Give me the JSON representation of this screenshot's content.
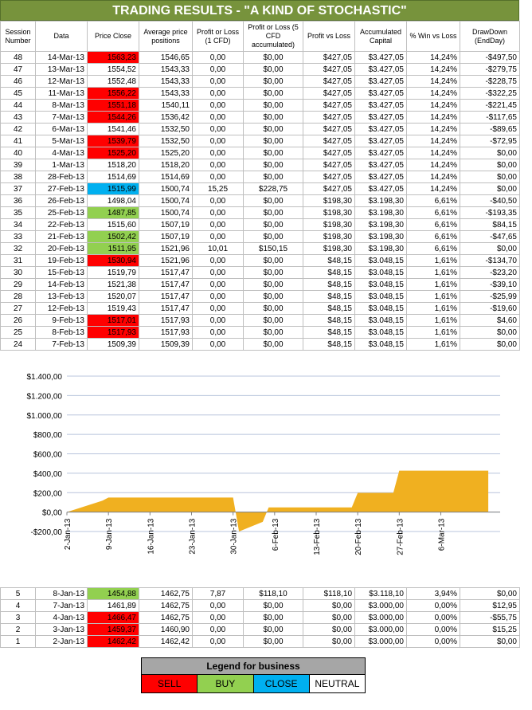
{
  "title": "TRADING RESULTS - \"A KIND OF STOCHASTIC\"",
  "headers": [
    "Session Number",
    "Data",
    "Price Close",
    "Average price positions",
    "Profit or Loss (1 CFD)",
    "Profit or Loss (5 CFD accumulated)",
    "Profit vs Loss",
    "Accumulated Capital",
    "% Win vs Loss",
    "DrawDown (EndDay)"
  ],
  "rows_top": [
    {
      "n": "48",
      "d": "14-Mar-13",
      "p": "1563,23",
      "s": "sell",
      "a": "1546,65",
      "pl": "0,00",
      "pl5": "$0,00",
      "pvl": "$427,05",
      "cap": "$3.427,05",
      "win": "14,24%",
      "dd": "-$497,50"
    },
    {
      "n": "47",
      "d": "13-Mar-13",
      "p": "1554,52",
      "s": "",
      "a": "1543,33",
      "pl": "0,00",
      "pl5": "$0,00",
      "pvl": "$427,05",
      "cap": "$3.427,05",
      "win": "14,24%",
      "dd": "-$279,75"
    },
    {
      "n": "46",
      "d": "12-Mar-13",
      "p": "1552,48",
      "s": "",
      "a": "1543,33",
      "pl": "0,00",
      "pl5": "$0,00",
      "pvl": "$427,05",
      "cap": "$3.427,05",
      "win": "14,24%",
      "dd": "-$228,75"
    },
    {
      "n": "45",
      "d": "11-Mar-13",
      "p": "1556,22",
      "s": "sell",
      "a": "1543,33",
      "pl": "0,00",
      "pl5": "$0,00",
      "pvl": "$427,05",
      "cap": "$3.427,05",
      "win": "14,24%",
      "dd": "-$322,25"
    },
    {
      "n": "44",
      "d": "8-Mar-13",
      "p": "1551,18",
      "s": "sell",
      "a": "1540,11",
      "pl": "0,00",
      "pl5": "$0,00",
      "pvl": "$427,05",
      "cap": "$3.427,05",
      "win": "14,24%",
      "dd": "-$221,45"
    },
    {
      "n": "43",
      "d": "7-Mar-13",
      "p": "1544,26",
      "s": "sell",
      "a": "1536,42",
      "pl": "0,00",
      "pl5": "$0,00",
      "pvl": "$427,05",
      "cap": "$3.427,05",
      "win": "14,24%",
      "dd": "-$117,65"
    },
    {
      "n": "42",
      "d": "6-Mar-13",
      "p": "1541,46",
      "s": "",
      "a": "1532,50",
      "pl": "0,00",
      "pl5": "$0,00",
      "pvl": "$427,05",
      "cap": "$3.427,05",
      "win": "14,24%",
      "dd": "-$89,65"
    },
    {
      "n": "41",
      "d": "5-Mar-13",
      "p": "1539,79",
      "s": "sell",
      "a": "1532,50",
      "pl": "0,00",
      "pl5": "$0,00",
      "pvl": "$427,05",
      "cap": "$3.427,05",
      "win": "14,24%",
      "dd": "-$72,95"
    },
    {
      "n": "40",
      "d": "4-Mar-13",
      "p": "1525,20",
      "s": "sell",
      "a": "1525,20",
      "pl": "0,00",
      "pl5": "$0,00",
      "pvl": "$427,05",
      "cap": "$3.427,05",
      "win": "14,24%",
      "dd": "$0,00"
    },
    {
      "n": "39",
      "d": "1-Mar-13",
      "p": "1518,20",
      "s": "",
      "a": "1518,20",
      "pl": "0,00",
      "pl5": "$0,00",
      "pvl": "$427,05",
      "cap": "$3.427,05",
      "win": "14,24%",
      "dd": "$0,00"
    },
    {
      "n": "38",
      "d": "28-Feb-13",
      "p": "1514,69",
      "s": "",
      "a": "1514,69",
      "pl": "0,00",
      "pl5": "$0,00",
      "pvl": "$427,05",
      "cap": "$3.427,05",
      "win": "14,24%",
      "dd": "$0,00"
    },
    {
      "n": "37",
      "d": "27-Feb-13",
      "p": "1515,99",
      "s": "close",
      "a": "1500,74",
      "pl": "15,25",
      "pl5": "$228,75",
      "pvl": "$427,05",
      "cap": "$3.427,05",
      "win": "14,24%",
      "dd": "$0,00"
    },
    {
      "n": "36",
      "d": "26-Feb-13",
      "p": "1498,04",
      "s": "",
      "a": "1500,74",
      "pl": "0,00",
      "pl5": "$0,00",
      "pvl": "$198,30",
      "cap": "$3.198,30",
      "win": "6,61%",
      "dd": "-$40,50"
    },
    {
      "n": "35",
      "d": "25-Feb-13",
      "p": "1487,85",
      "s": "buy",
      "a": "1500,74",
      "pl": "0,00",
      "pl5": "$0,00",
      "pvl": "$198,30",
      "cap": "$3.198,30",
      "win": "6,61%",
      "dd": "-$193,35"
    },
    {
      "n": "34",
      "d": "22-Feb-13",
      "p": "1515,60",
      "s": "",
      "a": "1507,19",
      "pl": "0,00",
      "pl5": "$0,00",
      "pvl": "$198,30",
      "cap": "$3.198,30",
      "win": "6,61%",
      "dd": "$84,15"
    },
    {
      "n": "33",
      "d": "21-Feb-13",
      "p": "1502,42",
      "s": "buy",
      "a": "1507,19",
      "pl": "0,00",
      "pl5": "$0,00",
      "pvl": "$198,30",
      "cap": "$3.198,30",
      "win": "6,61%",
      "dd": "-$47,65"
    },
    {
      "n": "32",
      "d": "20-Feb-13",
      "p": "1511,95",
      "s": "buy",
      "a": "1521,96",
      "pl": "10,01",
      "pl5": "$150,15",
      "pvl": "$198,30",
      "cap": "$3.198,30",
      "win": "6,61%",
      "dd": "$0,00"
    },
    {
      "n": "31",
      "d": "19-Feb-13",
      "p": "1530,94",
      "s": "sell",
      "a": "1521,96",
      "pl": "0,00",
      "pl5": "$0,00",
      "pvl": "$48,15",
      "cap": "$3.048,15",
      "win": "1,61%",
      "dd": "-$134,70"
    },
    {
      "n": "30",
      "d": "15-Feb-13",
      "p": "1519,79",
      "s": "",
      "a": "1517,47",
      "pl": "0,00",
      "pl5": "$0,00",
      "pvl": "$48,15",
      "cap": "$3.048,15",
      "win": "1,61%",
      "dd": "-$23,20"
    },
    {
      "n": "29",
      "d": "14-Feb-13",
      "p": "1521,38",
      "s": "",
      "a": "1517,47",
      "pl": "0,00",
      "pl5": "$0,00",
      "pvl": "$48,15",
      "cap": "$3.048,15",
      "win": "1,61%",
      "dd": "-$39,10"
    },
    {
      "n": "28",
      "d": "13-Feb-13",
      "p": "1520,07",
      "s": "",
      "a": "1517,47",
      "pl": "0,00",
      "pl5": "$0,00",
      "pvl": "$48,15",
      "cap": "$3.048,15",
      "win": "1,61%",
      "dd": "-$25,99"
    },
    {
      "n": "27",
      "d": "12-Feb-13",
      "p": "1519,43",
      "s": "",
      "a": "1517,47",
      "pl": "0,00",
      "pl5": "$0,00",
      "pvl": "$48,15",
      "cap": "$3.048,15",
      "win": "1,61%",
      "dd": "-$19,60"
    },
    {
      "n": "26",
      "d": "9-Feb-13",
      "p": "1517,01",
      "s": "sell",
      "a": "1517,93",
      "pl": "0,00",
      "pl5": "$0,00",
      "pvl": "$48,15",
      "cap": "$3.048,15",
      "win": "1,61%",
      "dd": "$4,60"
    },
    {
      "n": "25",
      "d": "8-Feb-13",
      "p": "1517,93",
      "s": "sell",
      "a": "1517,93",
      "pl": "0,00",
      "pl5": "$0,00",
      "pvl": "$48,15",
      "cap": "$3.048,15",
      "win": "1,61%",
      "dd": "$0,00"
    },
    {
      "n": "24",
      "d": "7-Feb-13",
      "p": "1509,39",
      "s": "",
      "a": "1509,39",
      "pl": "0,00",
      "pl5": "$0,00",
      "pvl": "$48,15",
      "cap": "$3.048,15",
      "win": "1,61%",
      "dd": "$0,00"
    }
  ],
  "rows_bottom": [
    {
      "n": "5",
      "d": "8-Jan-13",
      "p": "1454,88",
      "s": "buy",
      "a": "1462,75",
      "pl": "7,87",
      "pl5": "$118,10",
      "pvl": "$118,10",
      "cap": "$3.118,10",
      "win": "3,94%",
      "dd": "$0,00"
    },
    {
      "n": "4",
      "d": "7-Jan-13",
      "p": "1461,89",
      "s": "",
      "a": "1462,75",
      "pl": "0,00",
      "pl5": "$0,00",
      "pvl": "$0,00",
      "cap": "$3.000,00",
      "win": "0,00%",
      "dd": "$12,95"
    },
    {
      "n": "3",
      "d": "4-Jan-13",
      "p": "1466,47",
      "s": "sell",
      "a": "1462,75",
      "pl": "0,00",
      "pl5": "$0,00",
      "pvl": "$0,00",
      "cap": "$3.000,00",
      "win": "0,00%",
      "dd": "-$55,75"
    },
    {
      "n": "2",
      "d": "3-Jan-13",
      "p": "1459,37",
      "s": "sell",
      "a": "1460,90",
      "pl": "0,00",
      "pl5": "$0,00",
      "pvl": "$0,00",
      "cap": "$3.000,00",
      "win": "0,00%",
      "dd": "$15,25"
    },
    {
      "n": "1",
      "d": "2-Jan-13",
      "p": "1462,42",
      "s": "sell",
      "a": "1462,42",
      "pl": "0,00",
      "pl5": "$0,00",
      "pvl": "$0,00",
      "cap": "$3.000,00",
      "win": "0,00%",
      "dd": "$0,00"
    }
  ],
  "chart_data": {
    "type": "area",
    "title": "",
    "xlabel": "",
    "ylabel": "",
    "ylim": [
      -200,
      1400
    ],
    "yticks": [
      "-$200,00",
      "$0,00",
      "$200,00",
      "$400,00",
      "$600,00",
      "$800,00",
      "$1.000,00",
      "$1.200,00",
      "$1.400,00"
    ],
    "xticks": [
      "2-Jan-13",
      "9-Jan-13",
      "16-Jan-13",
      "23-Jan-13",
      "30-Jan-13",
      "6-Feb-13",
      "13-Feb-13",
      "20-Feb-13",
      "27-Feb-13",
      "6-Mar-13"
    ],
    "x": [
      "2-Jan-13",
      "8-Jan-13",
      "9-Jan-13",
      "30-Jan-13",
      "31-Jan-13",
      "4-Feb-13",
      "5-Feb-13",
      "19-Feb-13",
      "20-Feb-13",
      "26-Feb-13",
      "27-Feb-13",
      "14-Mar-13"
    ],
    "y": [
      0,
      118.1,
      150,
      150,
      -200,
      -100,
      48.15,
      48.15,
      198.3,
      198.3,
      427.05,
      427.05
    ],
    "color": "#f0b020",
    "grid": true
  },
  "legend": {
    "title": "Legend for business",
    "items": [
      {
        "label": "SELL",
        "color": "#ff0000"
      },
      {
        "label": "BUY",
        "color": "#92d050"
      },
      {
        "label": "CLOSE",
        "color": "#00b0f0"
      },
      {
        "label": "NEUTRAL",
        "color": "#ffffff"
      }
    ]
  }
}
